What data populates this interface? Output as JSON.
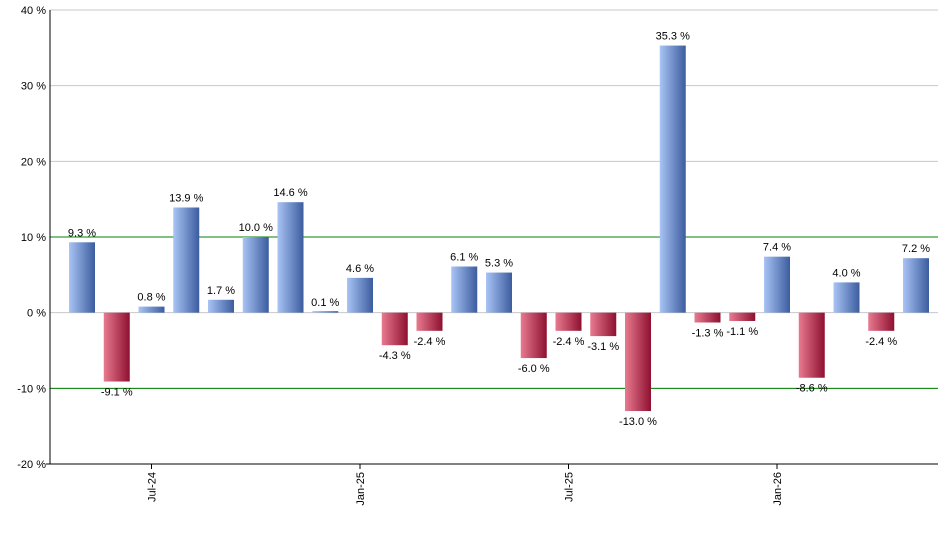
{
  "chart_data": {
    "type": "bar",
    "title": "",
    "xlabel": "",
    "ylabel": "",
    "ylim": [
      -20,
      40
    ],
    "y_ticks": [
      40,
      30,
      20,
      10,
      0,
      -10,
      -20
    ],
    "y_tick_labels": [
      "40 %",
      "30 %",
      "20 %",
      "10 %",
      "0 %",
      "-10 %",
      "-20 %"
    ],
    "reference_lines": [
      10,
      -10
    ],
    "reference_line_color": "#008000",
    "grid": true,
    "x_tick_labels": [
      {
        "label": "Jul-24",
        "index": 2
      },
      {
        "label": "Jan-25",
        "index": 8
      },
      {
        "label": "Jul-25",
        "index": 14
      },
      {
        "label": "Jan-26",
        "index": 20
      }
    ],
    "values": [
      9.3,
      -9.1,
      0.8,
      13.9,
      1.7,
      10.0,
      14.6,
      0.1,
      4.6,
      -4.3,
      -2.4,
      6.1,
      5.3,
      -6.0,
      -2.4,
      -3.1,
      -13.0,
      35.3,
      -1.3,
      -1.1,
      7.4,
      -8.6,
      4.0,
      -2.4,
      7.2
    ],
    "data_labels": [
      "9.3 %",
      "-9.1 %",
      "0.8 %",
      "13.9 %",
      "1.7 %",
      "10.0 %",
      "14.6 %",
      "0.1 %",
      "4.6 %",
      "-4.3 %",
      "-2.4 %",
      "6.1 %",
      "5.3 %",
      "-6.0 %",
      "-2.4 %",
      "-3.1 %",
      "-13.0 %",
      "35.3 %",
      "-1.3 %",
      "-1.1 %",
      "7.4 %",
      "-8.6 %",
      "4.0 %",
      "-2.4 %",
      "7.2 %"
    ],
    "colors": {
      "positive_light": "#a9c4f5",
      "positive_dark": "#3b5c9e",
      "negative_light": "#e87a90",
      "negative_dark": "#8e1030",
      "grid": "#c8c8c8",
      "axis": "#000000"
    }
  }
}
